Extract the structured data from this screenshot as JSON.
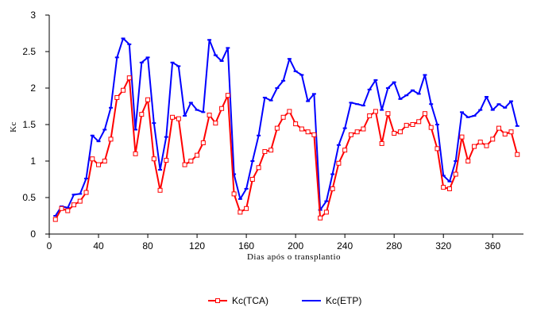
{
  "chart_data": {
    "type": "line",
    "xlabel": "Dias após o transplantio",
    "ylabel": "Kc",
    "xlim": [
      0,
      385
    ],
    "ylim": [
      0,
      3
    ],
    "xticks": [
      0,
      40,
      80,
      120,
      160,
      200,
      240,
      280,
      320,
      360
    ],
    "yticks": [
      0,
      0.5,
      1,
      1.5,
      2,
      2.5,
      3
    ],
    "xtick_labels": [
      "0",
      "40",
      "80",
      "120",
      "160",
      "200",
      "240",
      "280",
      "320",
      "360"
    ],
    "ytick_labels": [
      "0",
      "0.5",
      "1",
      "1.5",
      "2",
      "2.5",
      "3"
    ],
    "grid": false,
    "legend_position": "bottom",
    "series": [
      {
        "name": "Kc(TCA)",
        "color": "#ff0000",
        "marker": "square",
        "x": [
          5,
          10,
          15,
          20,
          25,
          30,
          35,
          40,
          45,
          50,
          55,
          60,
          65,
          70,
          75,
          80,
          85,
          90,
          95,
          100,
          105,
          110,
          115,
          120,
          125,
          130,
          135,
          140,
          145,
          150,
          155,
          160,
          165,
          170,
          175,
          180,
          185,
          190,
          195,
          200,
          205,
          210,
          215,
          220,
          225,
          230,
          235,
          240,
          245,
          250,
          255,
          260,
          265,
          270,
          275,
          280,
          285,
          290,
          295,
          300,
          305,
          310,
          315,
          320,
          325,
          330,
          335,
          340,
          345,
          350,
          355,
          360,
          365,
          370,
          375,
          380
        ],
        "y": [
          0.2,
          0.35,
          0.32,
          0.4,
          0.45,
          0.57,
          1.03,
          0.95,
          1.0,
          1.3,
          1.87,
          1.97,
          2.14,
          1.1,
          1.64,
          1.84,
          1.03,
          0.6,
          1.01,
          1.6,
          1.58,
          0.95,
          1.0,
          1.08,
          1.25,
          1.63,
          1.52,
          1.72,
          1.9,
          0.55,
          0.3,
          0.35,
          0.75,
          0.91,
          1.13,
          1.15,
          1.45,
          1.6,
          1.68,
          1.51,
          1.44,
          1.4,
          1.36,
          0.22,
          0.3,
          0.62,
          0.97,
          1.15,
          1.36,
          1.4,
          1.44,
          1.62,
          1.68,
          1.24,
          1.65,
          1.38,
          1.4,
          1.49,
          1.5,
          1.54,
          1.65,
          1.46,
          1.17,
          0.64,
          0.62,
          0.82,
          1.33,
          1.0,
          1.2,
          1.26,
          1.21,
          1.3,
          1.45,
          1.37,
          1.4,
          1.09
        ]
      },
      {
        "name": "Kc(ETP)",
        "color": "#0000ff",
        "marker": "dash",
        "x": [
          5,
          10,
          15,
          20,
          25,
          30,
          35,
          40,
          45,
          50,
          55,
          60,
          65,
          70,
          75,
          80,
          85,
          90,
          95,
          100,
          105,
          110,
          115,
          120,
          125,
          130,
          135,
          140,
          145,
          150,
          155,
          160,
          165,
          170,
          175,
          180,
          185,
          190,
          195,
          200,
          205,
          210,
          215,
          220,
          225,
          230,
          235,
          240,
          245,
          250,
          255,
          260,
          265,
          270,
          275,
          280,
          285,
          290,
          295,
          300,
          305,
          310,
          315,
          320,
          325,
          330,
          335,
          340,
          345,
          350,
          355,
          360,
          365,
          370,
          375,
          380
        ],
        "y": [
          0.25,
          0.38,
          0.36,
          0.54,
          0.55,
          0.76,
          1.35,
          1.27,
          1.43,
          1.73,
          2.42,
          2.68,
          2.6,
          1.43,
          2.35,
          2.42,
          1.52,
          0.88,
          1.33,
          2.35,
          2.3,
          1.62,
          1.8,
          1.7,
          1.67,
          2.66,
          2.45,
          2.37,
          2.55,
          0.82,
          0.48,
          0.62,
          1.0,
          1.35,
          1.87,
          1.83,
          2.0,
          2.1,
          2.4,
          2.23,
          2.18,
          1.82,
          1.92,
          0.33,
          0.45,
          0.82,
          1.22,
          1.45,
          1.8,
          1.78,
          1.76,
          1.98,
          2.11,
          1.7,
          2.0,
          2.08,
          1.85,
          1.9,
          1.97,
          1.92,
          2.18,
          1.78,
          1.5,
          0.8,
          0.72,
          1.0,
          1.67,
          1.6,
          1.62,
          1.7,
          1.88,
          1.7,
          1.78,
          1.73,
          1.82,
          1.48
        ]
      }
    ]
  }
}
